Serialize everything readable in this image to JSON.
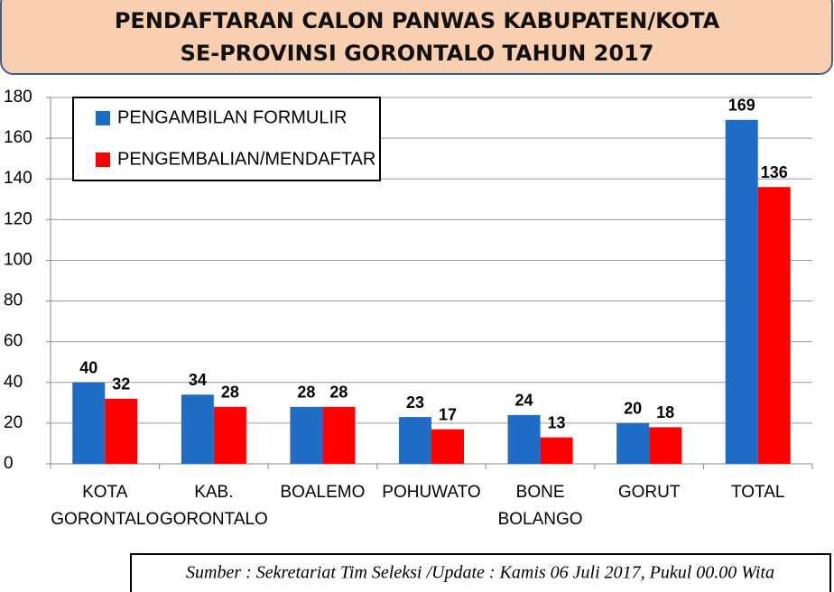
{
  "chart_data": {
    "type": "bar",
    "title": "PENDAFTARAN CALON PANWAS KABUPATEN/KOTA",
    "subtitle": "SE-PROVINSI GORONTALO TAHUN 2017",
    "categories": [
      "KOTA GORONTALO",
      "KAB. GORONTALO",
      "BOALEMO",
      "POHUWATO",
      "BONE BOLANGO",
      "GORUT",
      "TOTAL"
    ],
    "series": [
      {
        "name": "PENGAMBILAN FORMULIR",
        "color": "#1f6cc4",
        "values": [
          40,
          34,
          28,
          23,
          24,
          20,
          169
        ]
      },
      {
        "name": "PENGEMBALIAN/MENDAFTAR",
        "color": "#ff0000",
        "values": [
          32,
          28,
          28,
          17,
          13,
          18,
          136
        ]
      }
    ],
    "ylim": [
      0,
      180
    ],
    "yticks": [
      0,
      20,
      40,
      60,
      80,
      100,
      120,
      140,
      160,
      180
    ],
    "grid": true,
    "legend": "top-left",
    "source": "Sumber : Sekretariat Tim Seleksi /Update : Kamis 06 Juli 2017, Pukul 00.00  Wita"
  }
}
